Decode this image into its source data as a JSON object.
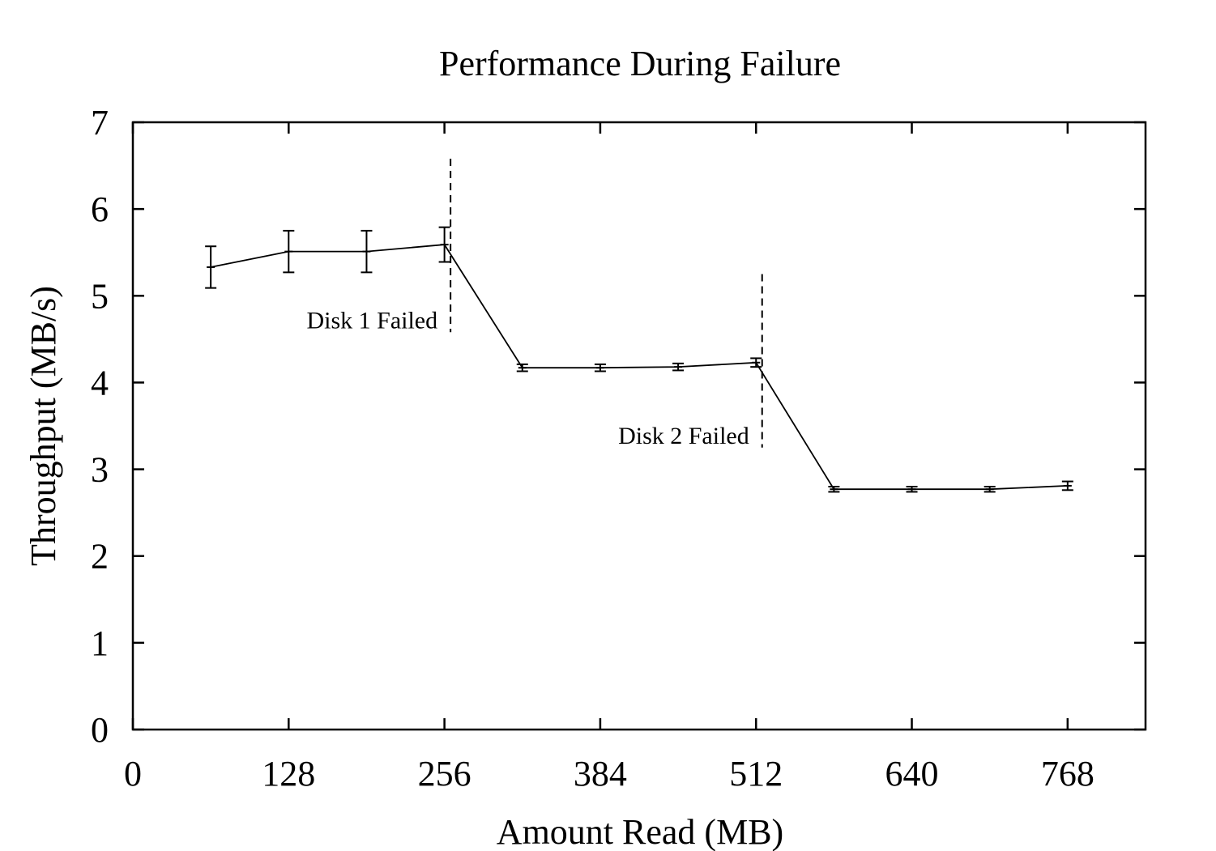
{
  "chart_data": {
    "type": "line",
    "title": "Performance During Failure",
    "xlabel": "Amount Read (MB)",
    "ylabel": "Throughput (MB/s)",
    "xlim": [
      0,
      832
    ],
    "ylim": [
      0,
      7
    ],
    "xticks": [
      0,
      128,
      256,
      384,
      512,
      640,
      768
    ],
    "yticks": [
      0,
      1,
      2,
      3,
      4,
      5,
      6,
      7
    ],
    "grid": false,
    "series": [
      {
        "name": "Throughput",
        "x": [
          64,
          128,
          192,
          256,
          320,
          384,
          448,
          512,
          576,
          640,
          704,
          768
        ],
        "y": [
          5.33,
          5.51,
          5.51,
          5.59,
          4.17,
          4.17,
          4.18,
          4.23,
          2.77,
          2.77,
          2.77,
          2.81
        ],
        "err": [
          0.24,
          0.24,
          0.24,
          0.2,
          0.04,
          0.04,
          0.04,
          0.05,
          0.03,
          0.03,
          0.03,
          0.05
        ]
      }
    ],
    "annotations": [
      {
        "text": "Disk 1 Failed",
        "x": 261,
        "y_from": 4.58,
        "y_to": 6.58
      },
      {
        "text": "Disk 2 Failed",
        "x": 517,
        "y_from": 3.25,
        "y_to": 5.25
      }
    ]
  }
}
